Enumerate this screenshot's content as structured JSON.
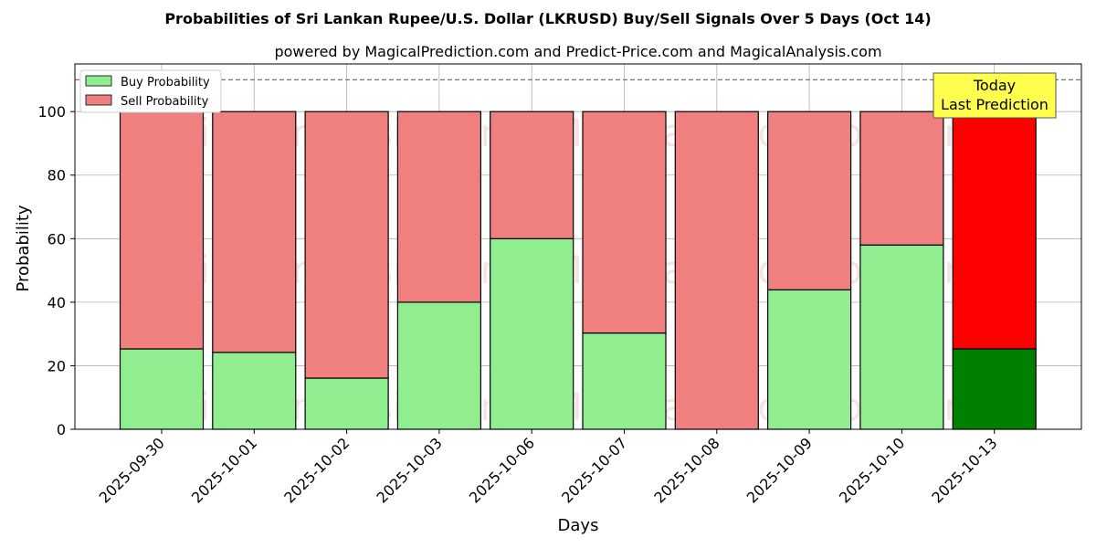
{
  "chart_data": {
    "type": "bar",
    "stacked": true,
    "title": "Probabilities of Sri Lankan Rupee/U.S. Dollar (LKRUSD) Buy/Sell Signals Over 5 Days (Oct 14)",
    "subtitle": "powered by MagicalPrediction.com and Predict-Price.com and MagicalAnalysis.com",
    "xlabel": "Days",
    "ylabel": "Probability",
    "ylim": [
      0,
      115
    ],
    "yticks": [
      0,
      20,
      40,
      60,
      80,
      100
    ],
    "reference_line": 110,
    "grid": true,
    "legend_position": "top-left",
    "categories": [
      "2025-09-30",
      "2025-10-01",
      "2025-10-02",
      "2025-10-03",
      "2025-10-06",
      "2025-10-07",
      "2025-10-08",
      "2025-10-09",
      "2025-10-10",
      "2025-10-13"
    ],
    "series": [
      {
        "name": "Buy Probability",
        "color": "#90ee90",
        "highlight_color": "#008000",
        "values": [
          25.3,
          24.2,
          16.1,
          40.0,
          60.0,
          30.3,
          0.0,
          43.9,
          58.0,
          25.3
        ]
      },
      {
        "name": "Sell Probability",
        "color": "#f08080",
        "highlight_color": "#ff0000",
        "values": [
          74.7,
          75.8,
          83.9,
          60.0,
          40.0,
          69.7,
          100.0,
          56.1,
          42.0,
          74.7
        ]
      }
    ],
    "highlight_index": 9,
    "annotation": {
      "line1": "Today",
      "line2": "Last Prediction",
      "background": "#ffff4d"
    },
    "watermarks": [
      "MagicalAnalysis.com",
      "MagicalPrediction.com"
    ]
  }
}
